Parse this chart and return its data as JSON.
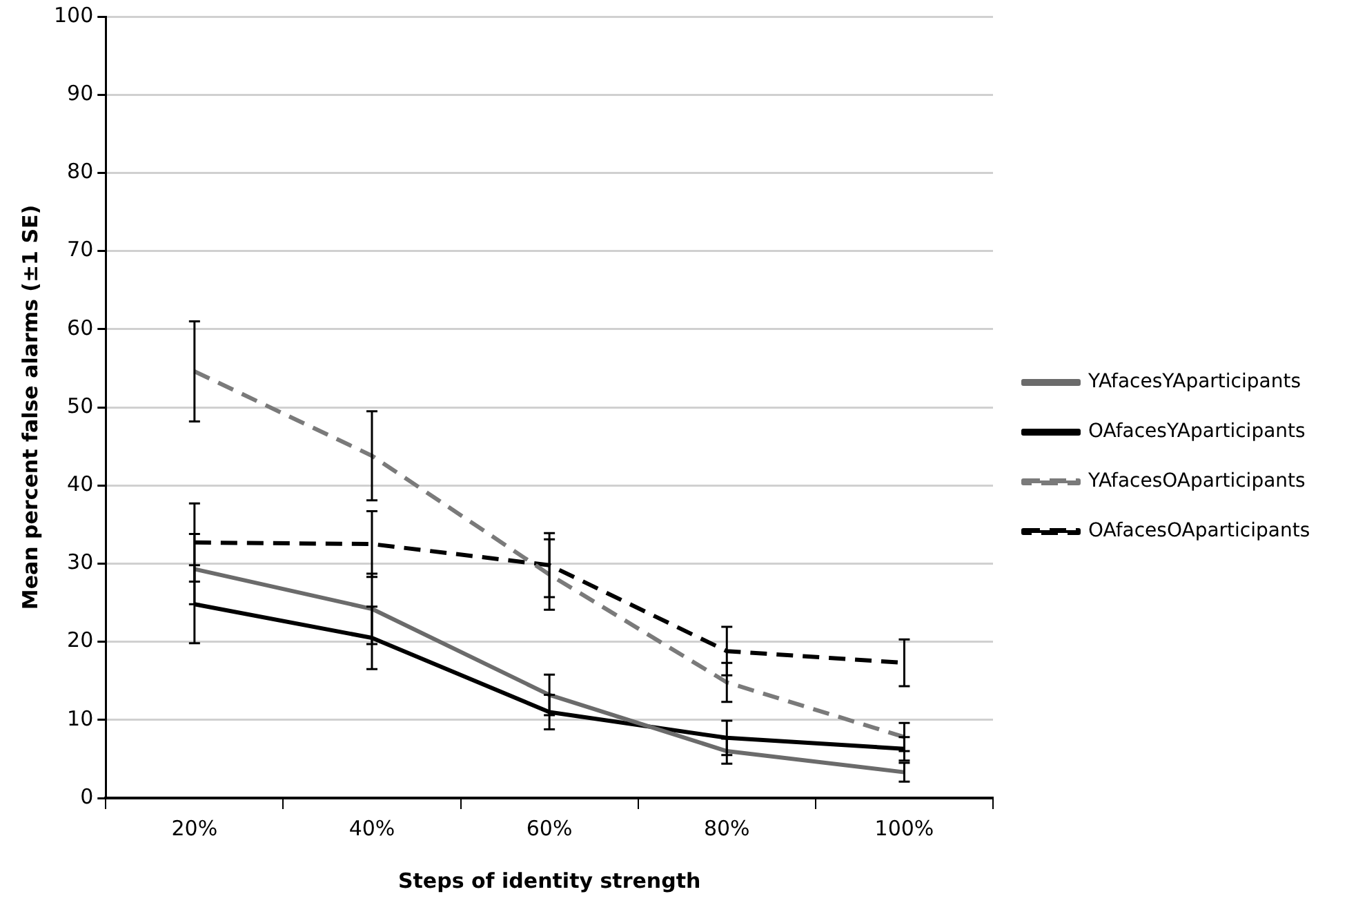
{
  "chart_data": {
    "type": "line",
    "xlabel": "Steps of identity strength",
    "ylabel": "Mean percent false alarms (±1 SE)",
    "categories": [
      "20%",
      "40%",
      "60%",
      "80%",
      "100%"
    ],
    "series": [
      {
        "name": "YAfacesYAparticipants",
        "color": "#6b6b6b",
        "line_style": "solid",
        "values": [
          29.3,
          24.2,
          13.2,
          6.0,
          3.3
        ],
        "errors": [
          4.5,
          4.5,
          2.6,
          1.6,
          1.2
        ]
      },
      {
        "name": "OAfacesYAparticipants",
        "color": "#000000",
        "line_style": "solid",
        "values": [
          24.8,
          20.5,
          11.0,
          7.7,
          6.3
        ],
        "errors": [
          5.0,
          4.0,
          2.2,
          2.2,
          1.5
        ]
      },
      {
        "name": "YAfacesOAparticipants",
        "color": "#7a7a7a",
        "line_style": "dashed",
        "values": [
          54.6,
          43.8,
          28.6,
          14.8,
          7.8
        ],
        "errors": [
          6.4,
          5.7,
          4.5,
          2.5,
          1.8
        ]
      },
      {
        "name": "OAfacesOAparticipants",
        "color": "#000000",
        "line_style": "dashed",
        "values": [
          32.7,
          32.5,
          29.8,
          18.8,
          17.3
        ],
        "errors": [
          5.0,
          4.2,
          4.1,
          3.1,
          3.0
        ]
      }
    ],
    "ylim": [
      0,
      100
    ],
    "yticks": [
      0,
      10,
      20,
      30,
      40,
      50,
      60,
      70,
      80,
      90,
      100
    ],
    "grid": "y",
    "legend": "right",
    "marker": "none"
  }
}
